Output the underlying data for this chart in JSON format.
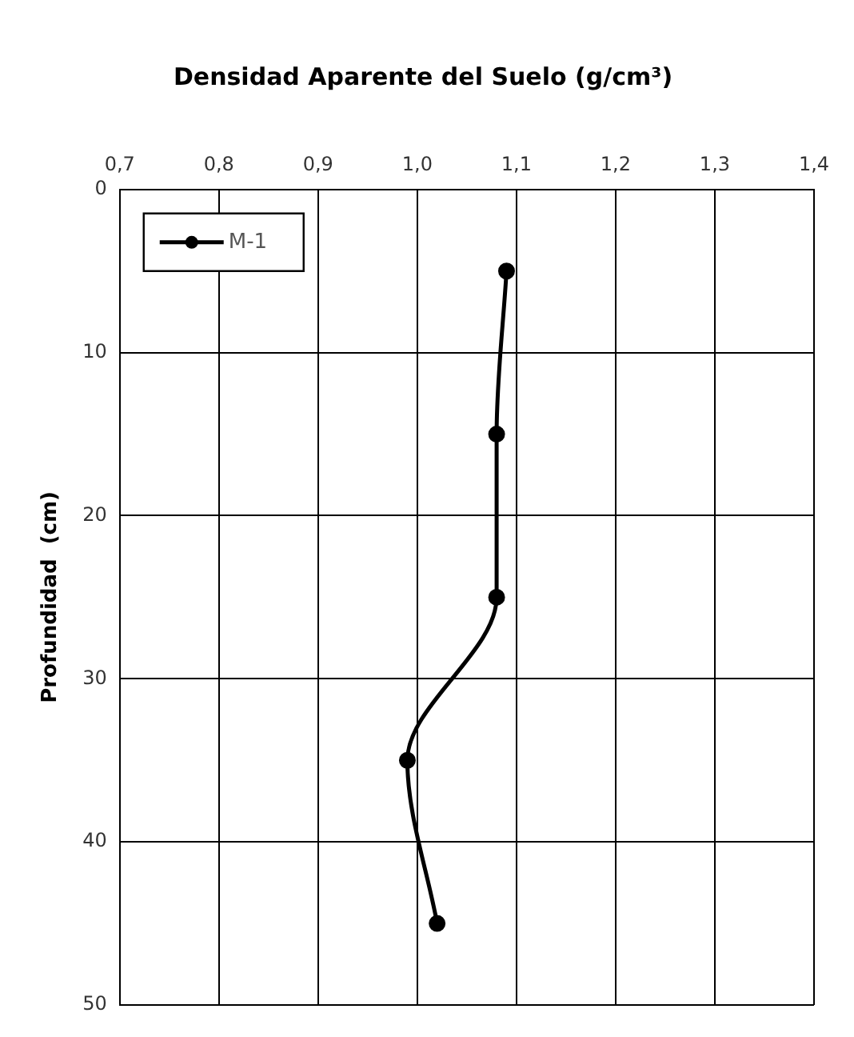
{
  "chart_data": {
    "type": "line",
    "title": "Densidad Aparente del Suelo (g/cm³)",
    "ylabel": "Profundidad  (cm)",
    "x": [
      1.09,
      1.08,
      1.08,
      0.99,
      1.02
    ],
    "series": [
      {
        "name": "M-1",
        "color": "#000000",
        "values": [
          5,
          15,
          25,
          35,
          45
        ]
      }
    ],
    "xlim": [
      0.7,
      1.4
    ],
    "xticks": [
      {
        "value": 0.7,
        "label": "0,7"
      },
      {
        "value": 0.8,
        "label": "0,8"
      },
      {
        "value": 0.9,
        "label": "0,9"
      },
      {
        "value": 1.0,
        "label": "1,0"
      },
      {
        "value": 1.1,
        "label": "1,1"
      },
      {
        "value": 1.2,
        "label": "1,2"
      },
      {
        "value": 1.3,
        "label": "1,3"
      },
      {
        "value": 1.4,
        "label": "1,4"
      }
    ],
    "ylim": [
      50,
      0
    ],
    "yticks": [
      0,
      10,
      20,
      30,
      40,
      50
    ],
    "grid": true,
    "legend": "top left",
    "marker": "circle",
    "line_style": "solid"
  }
}
